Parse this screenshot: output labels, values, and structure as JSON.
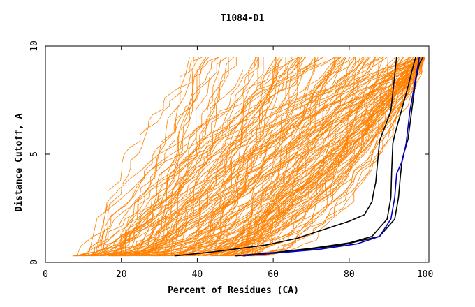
{
  "chart_data": {
    "type": "line",
    "title": "T1084-D1",
    "xlabel": "Percent of Residues (CA)",
    "ylabel": "Distance Cutoff, A",
    "xlim": [
      0,
      101
    ],
    "ylim": [
      0,
      10
    ],
    "x_ticks": [
      "0",
      "20",
      "40",
      "60",
      "80",
      "100"
    ],
    "y_ticks": [
      "0",
      "5",
      "10"
    ],
    "grid": false,
    "legend": "none",
    "colors": {
      "bundle": "#ff8000",
      "highlight_a": "#000000",
      "highlight_b": "#0000cc"
    },
    "highlight_series": [
      {
        "color": "#000000",
        "x": [
          34,
          45,
          58,
          66,
          73,
          80,
          84,
          86,
          86.5,
          87,
          88,
          91,
          92.5
        ],
        "y": [
          0.3,
          0.5,
          0.8,
          1.1,
          1.5,
          1.9,
          2.2,
          2.8,
          3.3,
          3.7,
          5.6,
          7.0,
          9.5
        ]
      },
      {
        "color": "#000000",
        "x": [
          50,
          60,
          70,
          80,
          86,
          90,
          91,
          91.2,
          91.5,
          92,
          95,
          97.5
        ],
        "y": [
          0.3,
          0.45,
          0.65,
          0.9,
          1.2,
          2.0,
          3.0,
          4.2,
          5.5,
          5.9,
          7.8,
          9.5
        ]
      },
      {
        "color": "#000000",
        "x": [
          52,
          65,
          78,
          88,
          92,
          93,
          93.5,
          94,
          95.5,
          97.5,
          98.5,
          99.5
        ],
        "y": [
          0.3,
          0.5,
          0.8,
          1.2,
          2.0,
          3.0,
          4.0,
          4.8,
          5.7,
          8.4,
          9.2,
          9.5
        ]
      },
      {
        "color": "#0000cc",
        "x": [
          52,
          62,
          72,
          82,
          88,
          91,
          92,
          92.5,
          94,
          95,
          96,
          97,
          98.5
        ],
        "y": [
          0.3,
          0.45,
          0.6,
          0.85,
          1.2,
          2.0,
          3.0,
          4.1,
          4.7,
          5.5,
          7.0,
          8.0,
          9.5
        ]
      }
    ]
  }
}
